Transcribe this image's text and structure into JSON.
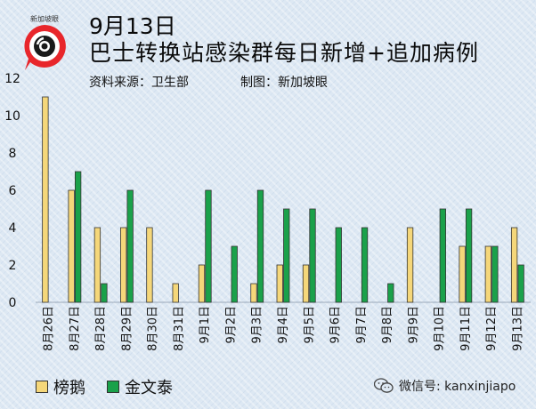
{
  "header": {
    "date": "9月13日",
    "title": "巴士转换站感染群每日新增+追加病例",
    "source": "资料来源：卫生部",
    "made_by": "制图：新加坡眼",
    "logo_text": "新加坡眼"
  },
  "watermark": "微信号: kanxinjiapo",
  "colors": {
    "series_1": "#f5d77a",
    "series_2": "#1aa14a",
    "logo_red": "#e8262b"
  },
  "chart_data": {
    "type": "bar",
    "title": "巴士转换站感染群每日新增+追加病例",
    "categories": [
      "8月26日",
      "8月27日",
      "8月28日",
      "8月29日",
      "8月30日",
      "8月31日",
      "9月1日",
      "9月2日",
      "9月3日",
      "9月4日",
      "9月5日",
      "9月6日",
      "9月7日",
      "9月8日",
      "9月9日",
      "9月10日",
      "9月11日",
      "9月12日",
      "9月13日"
    ],
    "series": [
      {
        "name": "榜鹅",
        "values": [
          11,
          6,
          4,
          4,
          4,
          1,
          2,
          0,
          1,
          2,
          2,
          0,
          0,
          0,
          4,
          0,
          3,
          3,
          4
        ]
      },
      {
        "name": "金文泰",
        "values": [
          0,
          7,
          1,
          6,
          0,
          0,
          6,
          3,
          6,
          5,
          5,
          4,
          4,
          1,
          0,
          5,
          5,
          3,
          2
        ]
      }
    ],
    "yticks": [
      "0",
      "2",
      "4",
      "6",
      "8",
      "10",
      "12"
    ],
    "ylim": [
      0,
      12
    ],
    "grid": false,
    "legend": "bottom-left"
  }
}
